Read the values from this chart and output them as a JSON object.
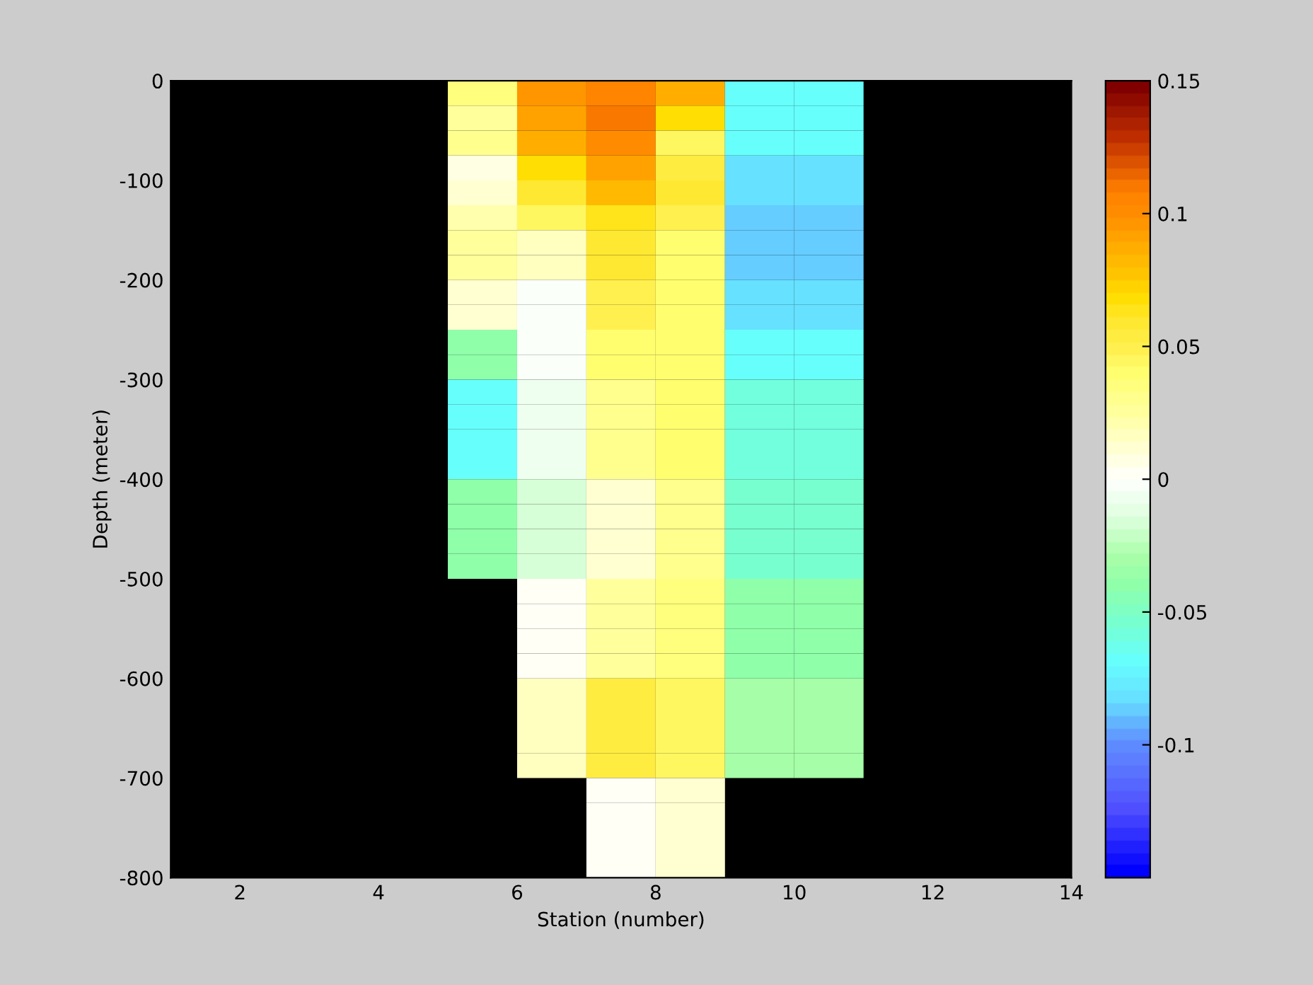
{
  "chart_data": {
    "type": "heatmap",
    "xlabel": "Station (number)",
    "ylabel": "Depth (meter)",
    "cells": [
      [
        null,
        null,
        null,
        null,
        0.035,
        0.095,
        0.105,
        0.085,
        -0.07,
        -0.07,
        null,
        null,
        null
      ],
      [
        null,
        null,
        null,
        null,
        0.025,
        0.09,
        0.11,
        0.07,
        -0.07,
        -0.07,
        null,
        null,
        null
      ],
      [
        null,
        null,
        null,
        null,
        0.03,
        0.085,
        0.1,
        0.045,
        -0.07,
        -0.07,
        null,
        null,
        null
      ],
      [
        null,
        null,
        null,
        null,
        0.008,
        0.07,
        0.09,
        0.055,
        -0.08,
        -0.08,
        null,
        null,
        null
      ],
      [
        null,
        null,
        null,
        null,
        0.01,
        0.06,
        0.08,
        0.06,
        -0.08,
        -0.08,
        null,
        null,
        null
      ],
      [
        null,
        null,
        null,
        null,
        0.02,
        0.045,
        0.065,
        0.05,
        -0.085,
        -0.085,
        null,
        null,
        null
      ],
      [
        null,
        null,
        null,
        null,
        0.025,
        0.015,
        0.06,
        0.04,
        -0.085,
        -0.085,
        null,
        null,
        null
      ],
      [
        null,
        null,
        null,
        null,
        0.025,
        0.015,
        0.06,
        0.04,
        -0.085,
        -0.085,
        null,
        null,
        null
      ],
      [
        null,
        null,
        null,
        null,
        0.013,
        -0.003,
        0.05,
        0.04,
        -0.08,
        -0.08,
        null,
        null,
        null
      ],
      [
        null,
        null,
        null,
        null,
        0.013,
        -0.003,
        0.05,
        0.04,
        -0.08,
        -0.08,
        null,
        null,
        null
      ],
      [
        null,
        null,
        null,
        null,
        -0.04,
        -0.003,
        0.04,
        0.04,
        -0.07,
        -0.07,
        null,
        null,
        null
      ],
      [
        null,
        null,
        null,
        null,
        -0.04,
        -0.003,
        0.04,
        0.04,
        -0.07,
        -0.07,
        null,
        null,
        null
      ],
      [
        null,
        null,
        null,
        null,
        -0.07,
        -0.008,
        0.03,
        0.04,
        -0.06,
        -0.06,
        null,
        null,
        null
      ],
      [
        null,
        null,
        null,
        null,
        -0.07,
        -0.008,
        0.03,
        0.04,
        -0.06,
        -0.06,
        null,
        null,
        null
      ],
      [
        null,
        null,
        null,
        null,
        -0.07,
        -0.008,
        0.03,
        0.04,
        -0.06,
        -0.06,
        null,
        null,
        null
      ],
      [
        null,
        null,
        null,
        null,
        -0.07,
        -0.008,
        0.03,
        0.04,
        -0.06,
        -0.06,
        null,
        null,
        null
      ],
      [
        null,
        null,
        null,
        null,
        -0.04,
        -0.015,
        0.01,
        0.03,
        -0.055,
        -0.055,
        null,
        null,
        null
      ],
      [
        null,
        null,
        null,
        null,
        -0.04,
        -0.015,
        0.01,
        0.03,
        -0.055,
        -0.055,
        null,
        null,
        null
      ],
      [
        null,
        null,
        null,
        null,
        -0.04,
        -0.015,
        0.01,
        0.03,
        -0.055,
        -0.055,
        null,
        null,
        null
      ],
      [
        null,
        null,
        null,
        null,
        -0.04,
        -0.015,
        0.01,
        0.03,
        -0.055,
        -0.055,
        null,
        null,
        null
      ],
      [
        null,
        null,
        null,
        null,
        null,
        0.003,
        0.025,
        0.035,
        -0.04,
        -0.04,
        null,
        null,
        null
      ],
      [
        null,
        null,
        null,
        null,
        null,
        0.003,
        0.025,
        0.035,
        -0.04,
        -0.04,
        null,
        null,
        null
      ],
      [
        null,
        null,
        null,
        null,
        null,
        0.003,
        0.025,
        0.035,
        -0.04,
        -0.04,
        null,
        null,
        null
      ],
      [
        null,
        null,
        null,
        null,
        null,
        0.003,
        0.025,
        0.035,
        -0.04,
        -0.04,
        null,
        null,
        null
      ],
      [
        null,
        null,
        null,
        null,
        null,
        0.015,
        0.055,
        0.045,
        -0.03,
        -0.03,
        null,
        null,
        null
      ],
      [
        null,
        null,
        null,
        null,
        null,
        0.015,
        0.055,
        0.045,
        -0.03,
        -0.03,
        null,
        null,
        null
      ],
      [
        null,
        null,
        null,
        null,
        null,
        0.015,
        0.055,
        0.045,
        -0.03,
        -0.03,
        null,
        null,
        null
      ],
      [
        null,
        null,
        null,
        null,
        null,
        0.015,
        0.055,
        0.045,
        -0.03,
        -0.03,
        null,
        null,
        null
      ],
      [
        null,
        null,
        null,
        null,
        null,
        null,
        0.003,
        0.01,
        null,
        null,
        null,
        null,
        null
      ],
      [
        null,
        null,
        null,
        null,
        null,
        null,
        0.003,
        0.01,
        null,
        null,
        null,
        null,
        null
      ],
      [
        null,
        null,
        null,
        null,
        null,
        null,
        0.003,
        0.01,
        null,
        null,
        null,
        null,
        null
      ],
      [
        null,
        null,
        null,
        null,
        null,
        null,
        0.003,
        0.01,
        null,
        null,
        null,
        null,
        null
      ]
    ],
    "xlim": [
      1,
      14
    ],
    "xticks": [
      2,
      4,
      6,
      8,
      10,
      12,
      14
    ],
    "ylim": [
      -800,
      0
    ],
    "yticks": [
      0,
      -100,
      -200,
      -300,
      -400,
      -500,
      -600,
      -700,
      -800
    ],
    "clim": [
      -0.15,
      0.15
    ],
    "cticks": [
      0.15,
      0.1,
      0.05,
      0,
      -0.05,
      -0.1
    ],
    "grid": false
  }
}
